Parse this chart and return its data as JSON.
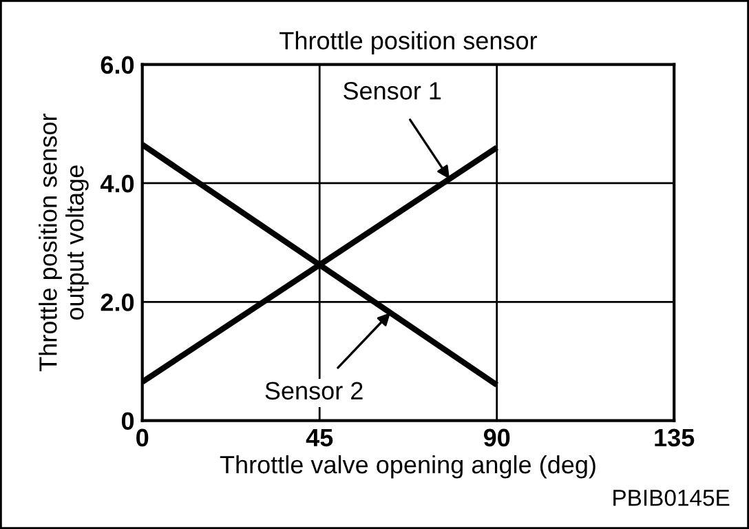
{
  "chart_data": {
    "type": "line",
    "title": "Throttle position sensor",
    "xlabel": "Throttle valve opening angle (deg)",
    "ylabel": "Throttle position sensor\noutput voltage",
    "x": [
      0,
      90
    ],
    "series": [
      {
        "color": "#000000",
        "values": [
          0.65,
          4.6
        ]
      },
      {
        "color": "#000000",
        "values": [
          4.65,
          0.6
        ]
      }
    ],
    "xlim": [
      0,
      135
    ],
    "xticks": [
      0,
      45,
      90,
      135
    ],
    "ylim": [
      0,
      6
    ],
    "yticks": [
      {
        "value": 0,
        "label": "0"
      },
      {
        "value": 2,
        "label": "2.0"
      },
      {
        "value": 4,
        "label": "4.0"
      },
      {
        "value": 6,
        "label": "6.0"
      }
    ],
    "grid": true,
    "marker": "none",
    "line_style": "solid",
    "annotations": [
      {
        "text": "Sensor 1",
        "x": 78,
        "y": 4.07
      },
      {
        "text": "Sensor 2",
        "x": 63,
        "y": 1.82
      },
      "PBIB0145E"
    ]
  }
}
